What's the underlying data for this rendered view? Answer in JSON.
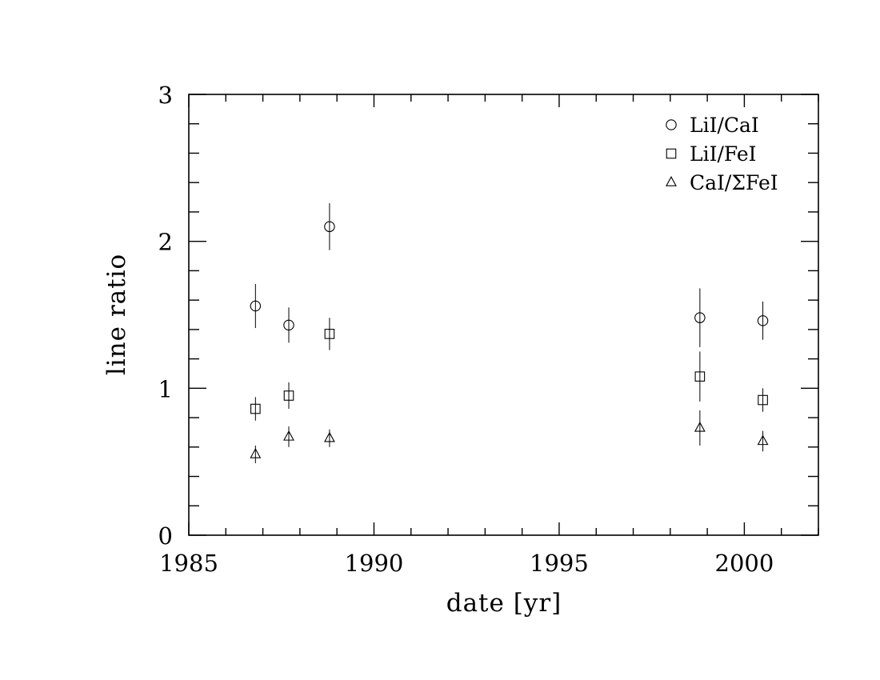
{
  "chart_data": {
    "type": "scatter",
    "xlabel": "date [yr]",
    "ylabel": "line ratio",
    "xlim": [
      1985,
      2002
    ],
    "ylim": [
      0,
      3
    ],
    "x_major_ticks": [
      1985,
      1990,
      1995,
      2000
    ],
    "x_minor_step": 1,
    "y_major_ticks": [
      0,
      1,
      2,
      3
    ],
    "y_minor_step": 0.2,
    "x_tick_labels": [
      "1985",
      "1990",
      "1995",
      "2000"
    ],
    "y_tick_labels": [
      "0",
      "1",
      "2",
      "3"
    ],
    "grid": false,
    "legend_position": "top-right",
    "series": [
      {
        "name": "LiI/CaI",
        "marker": "circle",
        "points": [
          {
            "x": 1986.8,
            "y": 1.56,
            "err": 0.15
          },
          {
            "x": 1987.7,
            "y": 1.43,
            "err": 0.12
          },
          {
            "x": 1988.8,
            "y": 2.1,
            "err": 0.16
          },
          {
            "x": 1998.8,
            "y": 1.48,
            "err": 0.2
          },
          {
            "x": 2000.5,
            "y": 1.46,
            "err": 0.13
          }
        ]
      },
      {
        "name": "LiI/FeI",
        "marker": "square",
        "points": [
          {
            "x": 1986.8,
            "y": 0.86,
            "err": 0.08
          },
          {
            "x": 1987.7,
            "y": 0.95,
            "err": 0.09
          },
          {
            "x": 1988.8,
            "y": 1.37,
            "err": 0.11
          },
          {
            "x": 1998.8,
            "y": 1.08,
            "err": 0.17
          },
          {
            "x": 2000.5,
            "y": 0.92,
            "err": 0.08
          }
        ]
      },
      {
        "name": "CaI/ΣFeI",
        "marker": "triangle",
        "points": [
          {
            "x": 1986.8,
            "y": 0.55,
            "err": 0.06
          },
          {
            "x": 1987.7,
            "y": 0.67,
            "err": 0.07
          },
          {
            "x": 1988.8,
            "y": 0.66,
            "err": 0.06
          },
          {
            "x": 1998.8,
            "y": 0.73,
            "err": 0.12
          },
          {
            "x": 2000.5,
            "y": 0.64,
            "err": 0.07
          }
        ]
      }
    ]
  }
}
